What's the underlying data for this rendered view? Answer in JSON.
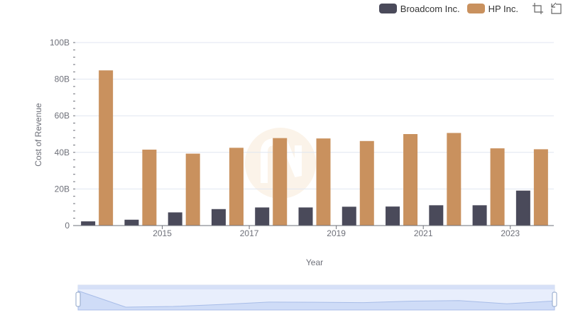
{
  "legend": {
    "items": [
      {
        "name": "Broadcom Inc.",
        "color": "#4a4a5a"
      },
      {
        "name": "HP Inc.",
        "color": "#c9915e"
      }
    ],
    "toolbox": [
      "zoom-icon",
      "restore-icon"
    ]
  },
  "chart_data": {
    "type": "bar",
    "categories": [
      "2014",
      "2015",
      "2016",
      "2017",
      "2018",
      "2019",
      "2020",
      "2021",
      "2022",
      "2023",
      "2024"
    ],
    "x_tick_labels": [
      "2015",
      "2017",
      "2019",
      "2021",
      "2023"
    ],
    "series": [
      {
        "name": "Broadcom Inc.",
        "color": "#4a4a5a",
        "values": [
          2.3,
          3.2,
          7.2,
          9.0,
          9.9,
          9.9,
          10.3,
          10.4,
          11.1,
          11.1,
          19.1
        ]
      },
      {
        "name": "HP Inc.",
        "color": "#c9915e",
        "values": [
          84.8,
          41.5,
          39.3,
          42.5,
          47.8,
          47.6,
          46.2,
          50.0,
          50.6,
          42.2,
          41.7
        ]
      }
    ],
    "xlabel": "Year",
    "ylabel": "Cost of Revenue",
    "ylim": [
      0,
      100
    ],
    "y_ticks": [
      "0",
      "20B",
      "40B",
      "60B",
      "80B",
      "100B"
    ],
    "grid": true,
    "legend_position": "top-right",
    "data_zoom": {
      "start": 0,
      "end": 100
    }
  }
}
